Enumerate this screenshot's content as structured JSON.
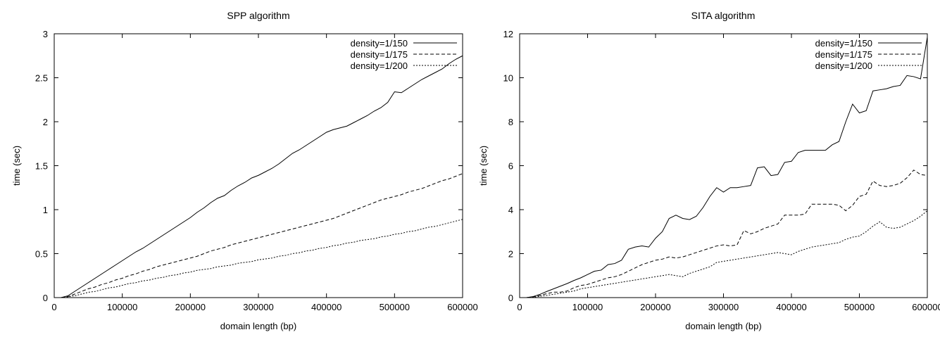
{
  "chart_data": [
    {
      "type": "line",
      "title": "SPP algorithm",
      "xlabel": "domain length (bp)",
      "ylabel": "time (sec)",
      "xlim": [
        0,
        600000
      ],
      "ylim": [
        0,
        3
      ],
      "xticks": [
        "0",
        "100000",
        "200000",
        "300000",
        "400000",
        "500000",
        "600000"
      ],
      "yticks": [
        "0",
        "0.5",
        "1",
        "1.5",
        "2",
        "2.5",
        "3"
      ],
      "legend": "top-right",
      "grid": false,
      "x": [
        10000,
        20000,
        30000,
        40000,
        50000,
        60000,
        70000,
        80000,
        90000,
        100000,
        110000,
        120000,
        130000,
        140000,
        150000,
        160000,
        170000,
        180000,
        190000,
        200000,
        210000,
        220000,
        230000,
        240000,
        250000,
        260000,
        270000,
        280000,
        290000,
        300000,
        310000,
        320000,
        330000,
        340000,
        350000,
        360000,
        370000,
        380000,
        390000,
        400000,
        410000,
        420000,
        430000,
        440000,
        450000,
        460000,
        470000,
        480000,
        490000,
        500000,
        510000,
        520000,
        530000,
        540000,
        550000,
        560000,
        570000,
        580000,
        590000,
        600000
      ],
      "series": [
        {
          "name": "density=1/150",
          "dash": "",
          "values": [
            0,
            0.02,
            0.07,
            0.12,
            0.17,
            0.22,
            0.27,
            0.32,
            0.37,
            0.42,
            0.47,
            0.52,
            0.56,
            0.61,
            0.66,
            0.71,
            0.76,
            0.81,
            0.86,
            0.91,
            0.97,
            1.02,
            1.08,
            1.13,
            1.16,
            1.22,
            1.27,
            1.31,
            1.36,
            1.39,
            1.43,
            1.47,
            1.52,
            1.58,
            1.64,
            1.68,
            1.73,
            1.78,
            1.83,
            1.88,
            1.91,
            1.93,
            1.95,
            1.99,
            2.03,
            2.07,
            2.12,
            2.16,
            2.22,
            2.34,
            2.33,
            2.38,
            2.43,
            2.48,
            2.52,
            2.56,
            2.6,
            2.66,
            2.71,
            2.75
          ]
        },
        {
          "name": "density=1/175",
          "dash": "5,3",
          "values": [
            0,
            0.01,
            0.04,
            0.07,
            0.1,
            0.12,
            0.15,
            0.17,
            0.2,
            0.22,
            0.25,
            0.27,
            0.3,
            0.32,
            0.35,
            0.37,
            0.39,
            0.41,
            0.43,
            0.45,
            0.47,
            0.5,
            0.53,
            0.55,
            0.57,
            0.6,
            0.62,
            0.64,
            0.66,
            0.68,
            0.7,
            0.72,
            0.74,
            0.76,
            0.78,
            0.8,
            0.82,
            0.84,
            0.86,
            0.88,
            0.9,
            0.93,
            0.96,
            0.99,
            1.02,
            1.05,
            1.08,
            1.11,
            1.13,
            1.15,
            1.17,
            1.2,
            1.22,
            1.24,
            1.27,
            1.3,
            1.33,
            1.35,
            1.38,
            1.41
          ]
        },
        {
          "name": "density=1/200",
          "dash": "2,2",
          "values": [
            0,
            0.01,
            0.02,
            0.04,
            0.06,
            0.07,
            0.09,
            0.11,
            0.12,
            0.14,
            0.16,
            0.17,
            0.19,
            0.2,
            0.22,
            0.23,
            0.25,
            0.26,
            0.28,
            0.29,
            0.31,
            0.32,
            0.33,
            0.35,
            0.36,
            0.37,
            0.39,
            0.4,
            0.41,
            0.43,
            0.44,
            0.45,
            0.47,
            0.48,
            0.5,
            0.51,
            0.53,
            0.54,
            0.56,
            0.57,
            0.59,
            0.6,
            0.62,
            0.63,
            0.65,
            0.66,
            0.67,
            0.69,
            0.7,
            0.72,
            0.73,
            0.75,
            0.76,
            0.78,
            0.8,
            0.81,
            0.83,
            0.85,
            0.87,
            0.89
          ]
        }
      ]
    },
    {
      "type": "line",
      "title": "SITA algorithm",
      "xlabel": "domain length (bp)",
      "ylabel": "time (sec)",
      "xlim": [
        0,
        600000
      ],
      "ylim": [
        0,
        12
      ],
      "xticks": [
        "0",
        "100000",
        "200000",
        "300000",
        "400000",
        "500000",
        "600000"
      ],
      "yticks": [
        "0",
        "2",
        "4",
        "6",
        "8",
        "10",
        "12"
      ],
      "legend": "top-right",
      "grid": false,
      "x": [
        10000,
        20000,
        30000,
        40000,
        50000,
        60000,
        70000,
        80000,
        90000,
        100000,
        110000,
        120000,
        130000,
        140000,
        150000,
        160000,
        170000,
        180000,
        190000,
        200000,
        210000,
        220000,
        230000,
        240000,
        250000,
        260000,
        270000,
        280000,
        290000,
        300000,
        310000,
        320000,
        330000,
        340000,
        350000,
        360000,
        370000,
        380000,
        390000,
        400000,
        410000,
        420000,
        430000,
        440000,
        450000,
        460000,
        470000,
        480000,
        490000,
        500000,
        510000,
        520000,
        530000,
        540000,
        550000,
        560000,
        570000,
        580000,
        590000,
        600000
      ],
      "series": [
        {
          "name": "density=1/150",
          "dash": "",
          "values": [
            0,
            0.05,
            0.15,
            0.28,
            0.4,
            0.52,
            0.64,
            0.78,
            0.9,
            1.05,
            1.2,
            1.25,
            1.5,
            1.55,
            1.7,
            2.2,
            2.3,
            2.35,
            2.3,
            2.7,
            3.0,
            3.6,
            3.75,
            3.6,
            3.55,
            3.7,
            4.1,
            4.6,
            5.0,
            4.8,
            5.0,
            5.0,
            5.05,
            5.1,
            5.9,
            5.95,
            5.55,
            5.6,
            6.15,
            6.2,
            6.6,
            6.7,
            6.7,
            6.7,
            6.7,
            6.95,
            7.1,
            8.0,
            8.8,
            8.4,
            8.5,
            9.4,
            9.45,
            9.5,
            9.6,
            9.65,
            10.1,
            10.05,
            9.95,
            11.85
          ]
        },
        {
          "name": "density=1/175",
          "dash": "5,3",
          "values": [
            0,
            0.03,
            0.1,
            0.18,
            0.25,
            0.25,
            0.3,
            0.45,
            0.55,
            0.6,
            0.7,
            0.8,
            0.9,
            0.95,
            1.05,
            1.2,
            1.35,
            1.5,
            1.6,
            1.7,
            1.75,
            1.85,
            1.8,
            1.85,
            1.95,
            2.05,
            2.15,
            2.25,
            2.35,
            2.4,
            2.35,
            2.4,
            3.05,
            2.9,
            3.0,
            3.15,
            3.25,
            3.35,
            3.75,
            3.75,
            3.75,
            3.8,
            4.25,
            4.25,
            4.25,
            4.25,
            4.2,
            3.95,
            4.2,
            4.6,
            4.7,
            5.3,
            5.1,
            5.05,
            5.1,
            5.2,
            5.45,
            5.8,
            5.6,
            5.55
          ]
        },
        {
          "name": "density=1/200",
          "dash": "2,2",
          "values": [
            0,
            0.02,
            0.06,
            0.1,
            0.15,
            0.2,
            0.25,
            0.3,
            0.4,
            0.45,
            0.5,
            0.55,
            0.6,
            0.65,
            0.7,
            0.75,
            0.8,
            0.85,
            0.9,
            0.95,
            1.0,
            1.05,
            1.0,
            0.95,
            1.1,
            1.2,
            1.3,
            1.4,
            1.6,
            1.65,
            1.7,
            1.75,
            1.8,
            1.85,
            1.9,
            1.95,
            2.0,
            2.05,
            2.0,
            1.95,
            2.1,
            2.2,
            2.3,
            2.35,
            2.4,
            2.45,
            2.5,
            2.65,
            2.75,
            2.8,
            3.0,
            3.25,
            3.45,
            3.2,
            3.15,
            3.2,
            3.35,
            3.5,
            3.7,
            3.95
          ]
        }
      ]
    }
  ]
}
